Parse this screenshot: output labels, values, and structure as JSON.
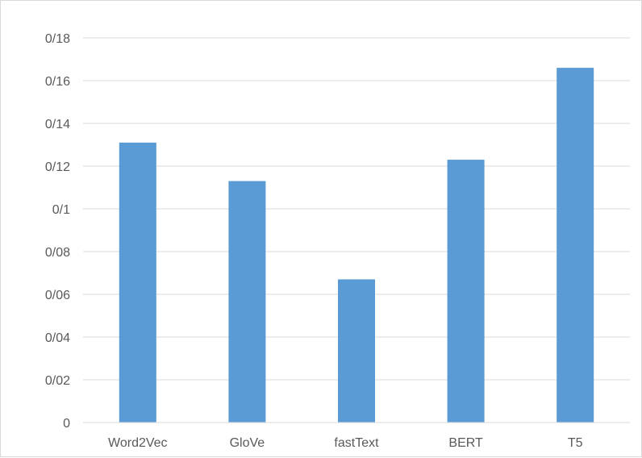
{
  "chart_data": {
    "type": "bar",
    "title": "",
    "xlabel": "",
    "ylabel": "",
    "categories": [
      "Word2Vec",
      "GloVe",
      "fastText",
      "BERT",
      "T5"
    ],
    "values": [
      0.131,
      0.113,
      0.067,
      0.123,
      0.166
    ],
    "ylim": [
      0,
      0.18
    ],
    "y_ticks": [
      0,
      0.02,
      0.04,
      0.06,
      0.08,
      0.1,
      0.12,
      0.14,
      0.16,
      0.18
    ],
    "y_tick_labels": [
      "0",
      "0/02",
      "0/04",
      "0/06",
      "0/08",
      "0/1",
      "0/12",
      "0/14",
      "0/16",
      "0/18"
    ],
    "grid": "horizontal",
    "legend": "none",
    "bar_color": "#5b9bd5",
    "grid_color": "#d9d9d9"
  }
}
